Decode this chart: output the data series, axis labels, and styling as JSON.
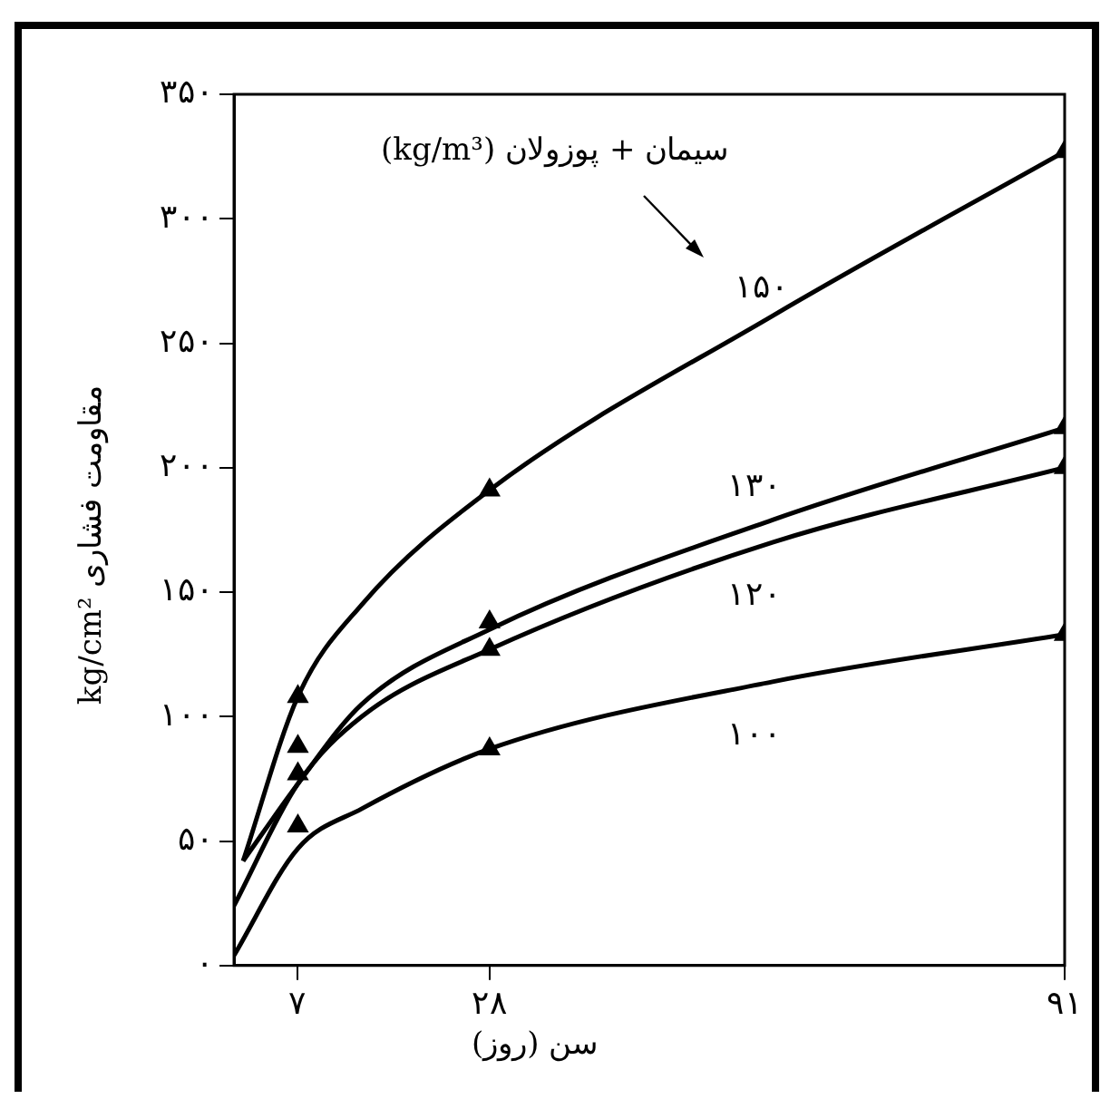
{
  "chart_data": {
    "type": "line",
    "xlabel": "سن (روز)",
    "ylabel": "مقاومت فشاری kg/cm²",
    "annotations": [
      "سیمان + پوزولان (kg/m³)"
    ],
    "xlim": [
      0,
      91
    ],
    "xticks": [
      {
        "value": 7,
        "label": "۷"
      },
      {
        "value": 28,
        "label": "۲۸"
      },
      {
        "value": 91,
        "label": "۹۱"
      }
    ],
    "ylim": [
      0,
      350
    ],
    "yticks": [
      {
        "value": 0,
        "label": "۰"
      },
      {
        "value": 50,
        "label": "۵۰"
      },
      {
        "value": 100,
        "label": "۱۰۰"
      },
      {
        "value": 150,
        "label": "۱۵۰"
      },
      {
        "value": 200,
        "label": "۲۰۰"
      },
      {
        "value": 250,
        "label": "۲۵۰"
      },
      {
        "value": 300,
        "label": "۳۰۰"
      },
      {
        "value": 350,
        "label": "۳۵۰"
      }
    ],
    "grid": false,
    "legend": false,
    "series": [
      {
        "name": "۱۵۰",
        "marker": "none",
        "color": "#000000",
        "x": [
          1,
          7,
          14,
          28,
          59,
          91
        ],
        "values": [
          42,
          108,
          145,
          191,
          261,
          327
        ]
      },
      {
        "name": "۱۳۰",
        "marker": "none",
        "color": "#000000",
        "x": [
          1,
          7,
          14,
          28,
          59,
          91
        ],
        "values": [
          42,
          73,
          105,
          135,
          179,
          216
        ]
      },
      {
        "name": "۱۲۰",
        "marker": "none",
        "color": "#000000",
        "x": [
          0,
          7,
          14,
          28,
          59,
          91
        ],
        "values": [
          24,
          73,
          100,
          127,
          170,
          200
        ]
      },
      {
        "name": "۱۰۰",
        "marker": "none",
        "color": "#000000",
        "x": [
          0,
          7,
          14,
          28,
          59,
          91
        ],
        "values": [
          4,
          47,
          63,
          87,
          114,
          133
        ]
      },
      {
        "type": "scatter",
        "marker": "triangle",
        "color": "#000000",
        "x": [
          7,
          28,
          91
        ],
        "values": [
          108,
          191,
          327
        ]
      },
      {
        "type": "scatter",
        "marker": "triangle",
        "color": "#000000",
        "x": [
          7,
          28,
          91
        ],
        "values": [
          88,
          138,
          216
        ]
      },
      {
        "type": "scatter",
        "marker": "triangle",
        "color": "#000000",
        "x": [
          7,
          28,
          91
        ],
        "values": [
          77,
          127,
          200
        ]
      },
      {
        "type": "scatter",
        "marker": "triangle",
        "color": "#000000",
        "x": [
          7,
          28,
          91
        ],
        "values": [
          56,
          87,
          133
        ]
      }
    ]
  }
}
